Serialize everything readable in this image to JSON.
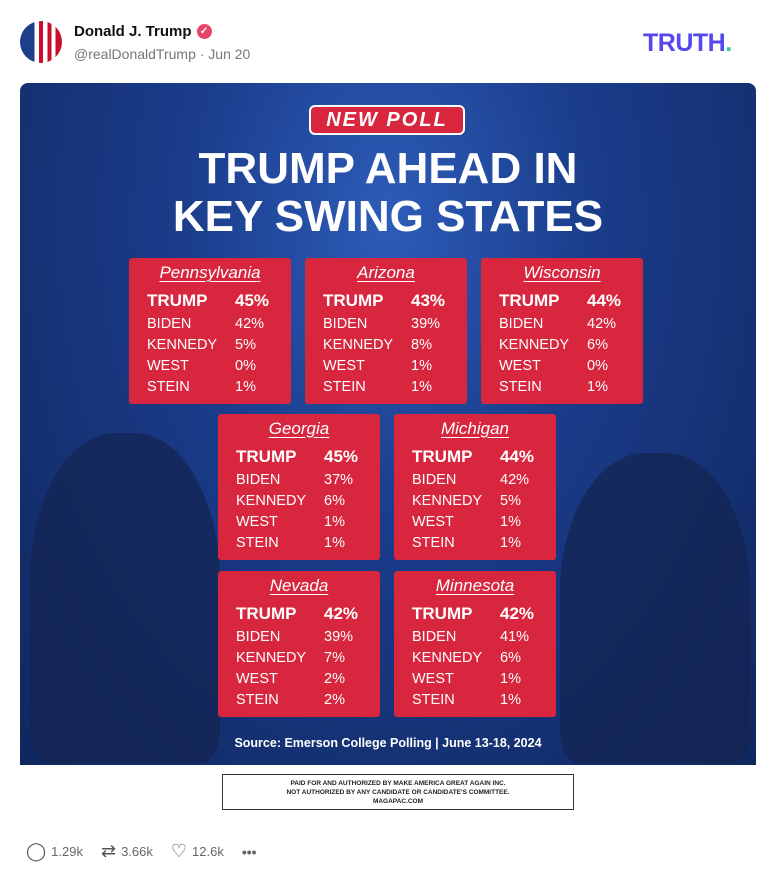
{
  "post": {
    "author": "Donald J. Trump",
    "handle": "@realDonaldTrump · Jun 20",
    "verified_icon": "check-badge-icon",
    "brand": "TRUTH",
    "brand_dot": ".",
    "colors": {
      "brand": "#5448ee",
      "brand_dot": "#30c7a8",
      "card": "#d7263d",
      "verified": "#e8446a"
    }
  },
  "graphic": {
    "badge": "NEW POLL",
    "headline_1": "TRUMP AHEAD IN",
    "headline_2": "KEY SWING STATES",
    "states": [
      {
        "name": "Pennsylvania",
        "rows": [
          [
            "TRUMP",
            "45%"
          ],
          [
            "BIDEN",
            "42%"
          ],
          [
            "KENNEDY",
            "5%"
          ],
          [
            "WEST",
            "0%"
          ],
          [
            "STEIN",
            "1%"
          ]
        ]
      },
      {
        "name": "Arizona",
        "rows": [
          [
            "TRUMP",
            "43%"
          ],
          [
            "BIDEN",
            "39%"
          ],
          [
            "KENNEDY",
            "8%"
          ],
          [
            "WEST",
            "1%"
          ],
          [
            "STEIN",
            "1%"
          ]
        ]
      },
      {
        "name": "Wisconsin",
        "rows": [
          [
            "TRUMP",
            "44%"
          ],
          [
            "BIDEN",
            "42%"
          ],
          [
            "KENNEDY",
            "6%"
          ],
          [
            "WEST",
            "0%"
          ],
          [
            "STEIN",
            "1%"
          ]
        ]
      },
      {
        "name": "Georgia",
        "rows": [
          [
            "TRUMP",
            "45%"
          ],
          [
            "BIDEN",
            "37%"
          ],
          [
            "KENNEDY",
            "6%"
          ],
          [
            "WEST",
            "1%"
          ],
          [
            "STEIN",
            "1%"
          ]
        ]
      },
      {
        "name": "Michigan",
        "rows": [
          [
            "TRUMP",
            "44%"
          ],
          [
            "BIDEN",
            "42%"
          ],
          [
            "KENNEDY",
            "5%"
          ],
          [
            "WEST",
            "1%"
          ],
          [
            "STEIN",
            "1%"
          ]
        ]
      },
      {
        "name": "Nevada",
        "rows": [
          [
            "TRUMP",
            "42%"
          ],
          [
            "BIDEN",
            "39%"
          ],
          [
            "KENNEDY",
            "7%"
          ],
          [
            "WEST",
            "2%"
          ],
          [
            "STEIN",
            "2%"
          ]
        ]
      },
      {
        "name": "Minnesota",
        "rows": [
          [
            "TRUMP",
            "42%"
          ],
          [
            "BIDEN",
            "41%"
          ],
          [
            "KENNEDY",
            "6%"
          ],
          [
            "WEST",
            "1%"
          ],
          [
            "STEIN",
            "1%"
          ]
        ]
      }
    ],
    "source": "Source: Emerson College Polling | June 13-18, 2024",
    "disclaimer": [
      "PAID FOR AND AUTHORIZED BY MAKE AMERICA GREAT AGAIN INC.",
      "NOT AUTHORIZED BY ANY CANDIDATE OR CANDIDATE'S COMMITTEE.",
      "MAGAPAC.COM"
    ]
  },
  "actions": {
    "replies": "1.29k",
    "retruths": "3.66k",
    "likes": "12.6k",
    "more": "•••"
  }
}
